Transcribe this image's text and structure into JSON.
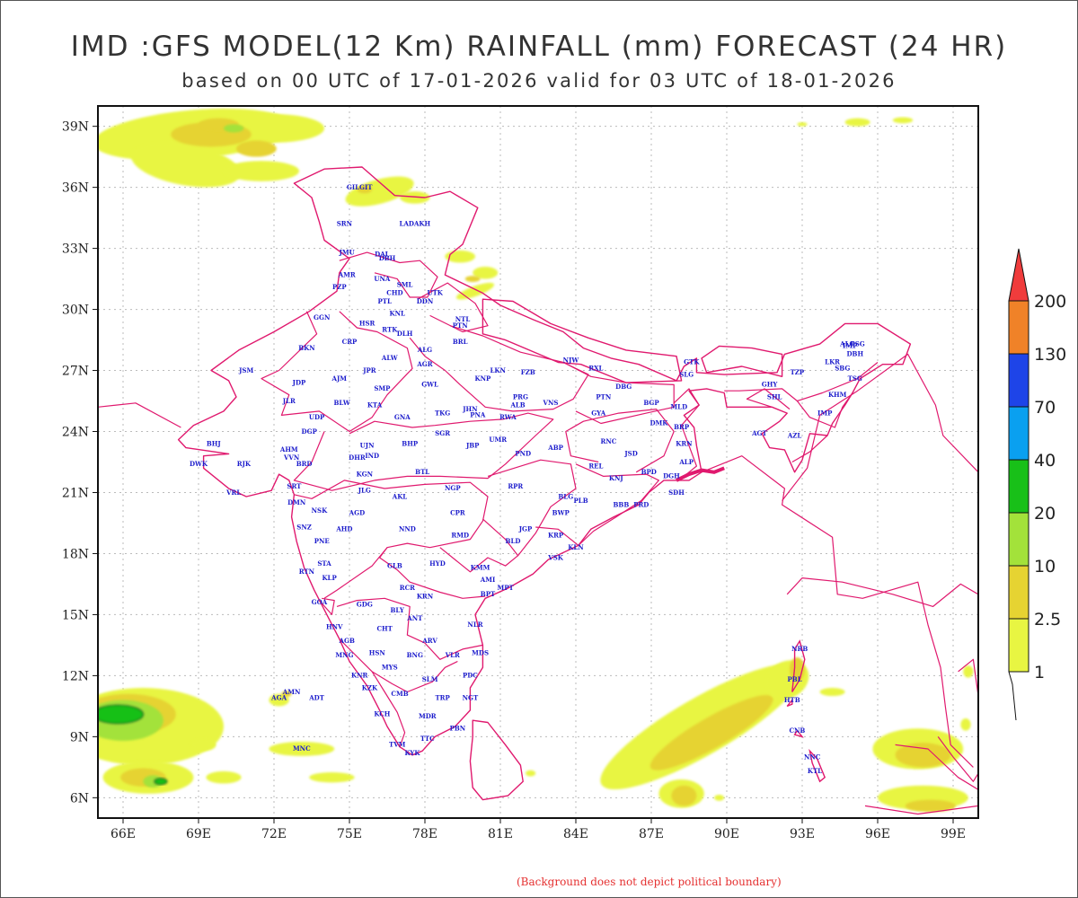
{
  "header": {
    "title": "IMD :GFS MODEL(12 Km) RAINFALL (mm) FORECAST (24 HR)",
    "subtitle": "based on 00 UTC of 17-01-2026 valid for 03 UTC of 18-01-2026"
  },
  "footer": {
    "note": "(Background does not depict political boundary)"
  },
  "map": {
    "lon_range": [
      65,
      100
    ],
    "lat_range": [
      5,
      40
    ],
    "lon_ticks": [
      "66E",
      "69E",
      "72E",
      "75E",
      "78E",
      "81E",
      "84E",
      "87E",
      "90E",
      "93E",
      "96E",
      "99E"
    ],
    "lat_ticks": [
      "39N",
      "36N",
      "33N",
      "30N",
      "27N",
      "24N",
      "21N",
      "18N",
      "15N",
      "12N",
      "9N",
      "6N"
    ],
    "colorbar": {
      "labels": [
        "1",
        "2.5",
        "10",
        "20",
        "40",
        "70",
        "130",
        "200"
      ],
      "colors": [
        "#e8f542",
        "#e6d332",
        "#a3e23a",
        "#18c018",
        "#0aa0f0",
        "#1e44e8",
        "#f08228",
        "#f03c3c"
      ]
    },
    "boundary_color": "#e0196e",
    "stations": [
      {
        "name": "GILGIT",
        "lon": 75.4,
        "lat": 35.9
      },
      {
        "name": "LADAKH",
        "lon": 77.6,
        "lat": 34.1
      },
      {
        "name": "SRN",
        "lon": 74.8,
        "lat": 34.1
      },
      {
        "name": "JMU",
        "lon": 74.9,
        "lat": 32.7
      },
      {
        "name": "DAL",
        "lon": 76.3,
        "lat": 32.6
      },
      {
        "name": "DBH",
        "lon": 76.5,
        "lat": 32.4
      },
      {
        "name": "AMR",
        "lon": 74.9,
        "lat": 31.6
      },
      {
        "name": "UNA",
        "lon": 76.3,
        "lat": 31.4
      },
      {
        "name": "PZP",
        "lon": 74.6,
        "lat": 31.0
      },
      {
        "name": "SML",
        "lon": 77.2,
        "lat": 31.1
      },
      {
        "name": "CHD",
        "lon": 76.8,
        "lat": 30.7
      },
      {
        "name": "UTK",
        "lon": 78.4,
        "lat": 30.7
      },
      {
        "name": "PTL",
        "lon": 76.4,
        "lat": 30.3
      },
      {
        "name": "DDN",
        "lon": 78.0,
        "lat": 30.3
      },
      {
        "name": "KNL",
        "lon": 76.9,
        "lat": 29.7
      },
      {
        "name": "NTL",
        "lon": 79.5,
        "lat": 29.4
      },
      {
        "name": "PTN",
        "lon": 79.4,
        "lat": 29.1
      },
      {
        "name": "GGN",
        "lon": 73.9,
        "lat": 29.5
      },
      {
        "name": "HSR",
        "lon": 75.7,
        "lat": 29.2
      },
      {
        "name": "RTK",
        "lon": 76.6,
        "lat": 28.9
      },
      {
        "name": "DLH",
        "lon": 77.2,
        "lat": 28.7
      },
      {
        "name": "BRL",
        "lon": 79.4,
        "lat": 28.3
      },
      {
        "name": "ALG",
        "lon": 78.0,
        "lat": 27.9
      },
      {
        "name": "BKN",
        "lon": 73.3,
        "lat": 28.0
      },
      {
        "name": "CRP",
        "lon": 75.0,
        "lat": 28.3
      },
      {
        "name": "ALW",
        "lon": 76.6,
        "lat": 27.5
      },
      {
        "name": "AGR",
        "lon": 78.0,
        "lat": 27.2
      },
      {
        "name": "JSM",
        "lon": 70.9,
        "lat": 26.9
      },
      {
        "name": "JPR",
        "lon": 75.8,
        "lat": 26.9
      },
      {
        "name": "LKN",
        "lon": 80.9,
        "lat": 26.9
      },
      {
        "name": "FZB",
        "lon": 82.1,
        "lat": 26.8
      },
      {
        "name": "NJW",
        "lon": 83.8,
        "lat": 27.4
      },
      {
        "name": "RXL",
        "lon": 84.8,
        "lat": 27.0
      },
      {
        "name": "GTK",
        "lon": 88.6,
        "lat": 27.3
      },
      {
        "name": "SLG",
        "lon": 88.4,
        "lat": 26.7
      },
      {
        "name": "AJM",
        "lon": 74.6,
        "lat": 26.5
      },
      {
        "name": "GWL",
        "lon": 78.2,
        "lat": 26.2
      },
      {
        "name": "KNP",
        "lon": 80.3,
        "lat": 26.5
      },
      {
        "name": "JDP",
        "lon": 73.0,
        "lat": 26.3
      },
      {
        "name": "SMP",
        "lon": 76.3,
        "lat": 26.0
      },
      {
        "name": "KTA",
        "lon": 76.0,
        "lat": 25.2
      },
      {
        "name": "PRG",
        "lon": 81.8,
        "lat": 25.6
      },
      {
        "name": "VNS",
        "lon": 83.0,
        "lat": 25.3
      },
      {
        "name": "PTN",
        "lon": 85.1,
        "lat": 25.6
      },
      {
        "name": "DBG",
        "lon": 85.9,
        "lat": 26.1
      },
      {
        "name": "BGP",
        "lon": 87.0,
        "lat": 25.3
      },
      {
        "name": "ALB",
        "lon": 81.7,
        "lat": 25.2
      },
      {
        "name": "JLR",
        "lon": 72.6,
        "lat": 25.4
      },
      {
        "name": "BLW",
        "lon": 74.7,
        "lat": 25.3
      },
      {
        "name": "TKG",
        "lon": 78.7,
        "lat": 24.8
      },
      {
        "name": "JHN",
        "lon": 79.8,
        "lat": 25.0
      },
      {
        "name": "PNA",
        "lon": 80.1,
        "lat": 24.7
      },
      {
        "name": "RWA",
        "lon": 81.3,
        "lat": 24.6
      },
      {
        "name": "GNA",
        "lon": 77.1,
        "lat": 24.6
      },
      {
        "name": "UDP",
        "lon": 73.7,
        "lat": 24.6
      },
      {
        "name": "GYA",
        "lon": 84.9,
        "lat": 24.8
      },
      {
        "name": "MLD",
        "lon": 88.1,
        "lat": 25.1
      },
      {
        "name": "DMK",
        "lon": 87.3,
        "lat": 24.3
      },
      {
        "name": "BRP",
        "lon": 88.2,
        "lat": 24.1
      },
      {
        "name": "SGR",
        "lon": 78.7,
        "lat": 23.8
      },
      {
        "name": "DGP",
        "lon": 73.4,
        "lat": 23.9
      },
      {
        "name": "BHJ",
        "lon": 69.6,
        "lat": 23.3
      },
      {
        "name": "AHM",
        "lon": 72.6,
        "lat": 23.0
      },
      {
        "name": "UJN",
        "lon": 75.7,
        "lat": 23.2
      },
      {
        "name": "BHP",
        "lon": 77.4,
        "lat": 23.3
      },
      {
        "name": "JBP",
        "lon": 79.9,
        "lat": 23.2
      },
      {
        "name": "UMR",
        "lon": 80.9,
        "lat": 23.5
      },
      {
        "name": "ABP",
        "lon": 83.2,
        "lat": 23.1
      },
      {
        "name": "RNC",
        "lon": 85.3,
        "lat": 23.4
      },
      {
        "name": "KRN",
        "lon": 88.3,
        "lat": 23.3
      },
      {
        "name": "VVN",
        "lon": 72.7,
        "lat": 22.6
      },
      {
        "name": "IND",
        "lon": 75.9,
        "lat": 22.7
      },
      {
        "name": "PND",
        "lon": 81.9,
        "lat": 22.8
      },
      {
        "name": "JSD",
        "lon": 86.2,
        "lat": 22.8
      },
      {
        "name": "ALP",
        "lon": 88.4,
        "lat": 22.4
      },
      {
        "name": "DWK",
        "lon": 69.0,
        "lat": 22.3
      },
      {
        "name": "RJK",
        "lon": 70.8,
        "lat": 22.3
      },
      {
        "name": "BRD",
        "lon": 73.2,
        "lat": 22.3
      },
      {
        "name": "DHR",
        "lon": 75.3,
        "lat": 22.6
      },
      {
        "name": "KGN",
        "lon": 75.6,
        "lat": 21.8
      },
      {
        "name": "BTL",
        "lon": 77.9,
        "lat": 21.9
      },
      {
        "name": "REL",
        "lon": 84.8,
        "lat": 22.2
      },
      {
        "name": "KNJ",
        "lon": 85.6,
        "lat": 21.6
      },
      {
        "name": "BPD",
        "lon": 86.9,
        "lat": 21.9
      },
      {
        "name": "DGH",
        "lon": 87.8,
        "lat": 21.7
      },
      {
        "name": "VRL",
        "lon": 70.4,
        "lat": 20.9
      },
      {
        "name": "SRT",
        "lon": 72.8,
        "lat": 21.2
      },
      {
        "name": "JLG",
        "lon": 75.6,
        "lat": 21.0
      },
      {
        "name": "AKL",
        "lon": 77.0,
        "lat": 20.7
      },
      {
        "name": "NGP",
        "lon": 79.1,
        "lat": 21.1
      },
      {
        "name": "RPR",
        "lon": 81.6,
        "lat": 21.2
      },
      {
        "name": "BLG",
        "lon": 83.6,
        "lat": 20.7
      },
      {
        "name": "PLB",
        "lon": 84.2,
        "lat": 20.5
      },
      {
        "name": "BBB",
        "lon": 85.8,
        "lat": 20.3
      },
      {
        "name": "PRD",
        "lon": 86.6,
        "lat": 20.3
      },
      {
        "name": "SDH",
        "lon": 88.0,
        "lat": 20.9
      },
      {
        "name": "DMN",
        "lon": 72.9,
        "lat": 20.4
      },
      {
        "name": "NSK",
        "lon": 73.8,
        "lat": 20.0
      },
      {
        "name": "AGD",
        "lon": 75.3,
        "lat": 19.9
      },
      {
        "name": "CPR",
        "lon": 79.3,
        "lat": 19.9
      },
      {
        "name": "BWP",
        "lon": 83.4,
        "lat": 19.9
      },
      {
        "name": "SNZ",
        "lon": 73.2,
        "lat": 19.2
      },
      {
        "name": "AHD",
        "lon": 74.8,
        "lat": 19.1
      },
      {
        "name": "NND",
        "lon": 77.3,
        "lat": 19.1
      },
      {
        "name": "JGP",
        "lon": 82.0,
        "lat": 19.1
      },
      {
        "name": "KRP",
        "lon": 83.2,
        "lat": 18.8
      },
      {
        "name": "RMD",
        "lon": 79.4,
        "lat": 18.8
      },
      {
        "name": "BLD",
        "lon": 81.5,
        "lat": 18.5
      },
      {
        "name": "PNE",
        "lon": 73.9,
        "lat": 18.5
      },
      {
        "name": "KLN",
        "lon": 84.0,
        "lat": 18.2
      },
      {
        "name": "VSK",
        "lon": 83.2,
        "lat": 17.7
      },
      {
        "name": "STA",
        "lon": 74.0,
        "lat": 17.4
      },
      {
        "name": "GLB",
        "lon": 76.8,
        "lat": 17.3
      },
      {
        "name": "HYD",
        "lon": 78.5,
        "lat": 17.4
      },
      {
        "name": "RTN",
        "lon": 73.3,
        "lat": 17.0
      },
      {
        "name": "KMM",
        "lon": 80.2,
        "lat": 17.2
      },
      {
        "name": "KLP",
        "lon": 74.2,
        "lat": 16.7
      },
      {
        "name": "AMI",
        "lon": 80.5,
        "lat": 16.6
      },
      {
        "name": "MPT",
        "lon": 81.2,
        "lat": 16.2
      },
      {
        "name": "BPT",
        "lon": 80.5,
        "lat": 15.9
      },
      {
        "name": "RCR",
        "lon": 77.3,
        "lat": 16.2
      },
      {
        "name": "KRN",
        "lon": 78.0,
        "lat": 15.8
      },
      {
        "name": "GOA",
        "lon": 73.8,
        "lat": 15.5
      },
      {
        "name": "GDG",
        "lon": 75.6,
        "lat": 15.4
      },
      {
        "name": "BLY",
        "lon": 76.9,
        "lat": 15.1
      },
      {
        "name": "ANT",
        "lon": 77.6,
        "lat": 14.7
      },
      {
        "name": "NLR",
        "lon": 80.0,
        "lat": 14.4
      },
      {
        "name": "HNV",
        "lon": 74.4,
        "lat": 14.3
      },
      {
        "name": "CHT",
        "lon": 76.4,
        "lat": 14.2
      },
      {
        "name": "ARV",
        "lon": 78.2,
        "lat": 13.6
      },
      {
        "name": "AGB",
        "lon": 74.9,
        "lat": 13.6
      },
      {
        "name": "VLR",
        "lon": 79.1,
        "lat": 12.9
      },
      {
        "name": "MDS",
        "lon": 80.2,
        "lat": 13.0
      },
      {
        "name": "MNG",
        "lon": 74.8,
        "lat": 12.9
      },
      {
        "name": "HSN",
        "lon": 76.1,
        "lat": 13.0
      },
      {
        "name": "BNG",
        "lon": 77.6,
        "lat": 12.9
      },
      {
        "name": "MYS",
        "lon": 76.6,
        "lat": 12.3
      },
      {
        "name": "KNR",
        "lon": 75.4,
        "lat": 11.9
      },
      {
        "name": "SLM",
        "lon": 78.2,
        "lat": 11.7
      },
      {
        "name": "PDC",
        "lon": 79.8,
        "lat": 11.9
      },
      {
        "name": "KZK",
        "lon": 75.8,
        "lat": 11.3
      },
      {
        "name": "CMB",
        "lon": 77.0,
        "lat": 11.0
      },
      {
        "name": "TRP",
        "lon": 78.7,
        "lat": 10.8
      },
      {
        "name": "NGT",
        "lon": 79.8,
        "lat": 10.8
      },
      {
        "name": "KCH",
        "lon": 76.3,
        "lat": 10.0
      },
      {
        "name": "MDR",
        "lon": 78.1,
        "lat": 9.9
      },
      {
        "name": "PBN",
        "lon": 79.3,
        "lat": 9.3
      },
      {
        "name": "TVM",
        "lon": 76.9,
        "lat": 8.5
      },
      {
        "name": "TTC",
        "lon": 78.1,
        "lat": 8.8
      },
      {
        "name": "KYK",
        "lon": 77.5,
        "lat": 8.1
      },
      {
        "name": "AMN",
        "lon": 72.7,
        "lat": 11.1
      },
      {
        "name": "AGA",
        "lon": 72.2,
        "lat": 10.8
      },
      {
        "name": "ADT",
        "lon": 73.7,
        "lat": 10.8
      },
      {
        "name": "MNC",
        "lon": 73.1,
        "lat": 8.3
      },
      {
        "name": "NRB",
        "lon": 92.9,
        "lat": 13.2
      },
      {
        "name": "PBL",
        "lon": 92.7,
        "lat": 11.7
      },
      {
        "name": "HTB",
        "lon": 92.6,
        "lat": 10.7
      },
      {
        "name": "CNB",
        "lon": 92.8,
        "lat": 9.2
      },
      {
        "name": "NNC",
        "lon": 93.4,
        "lat": 7.9
      },
      {
        "name": "KTL",
        "lon": 93.5,
        "lat": 7.2
      },
      {
        "name": "ALO",
        "lon": 94.8,
        "lat": 28.2
      },
      {
        "name": "PSG",
        "lon": 95.2,
        "lat": 28.2
      },
      {
        "name": "IMP",
        "lon": 94.9,
        "lat": 28.1
      },
      {
        "name": "DBH",
        "lon": 95.1,
        "lat": 27.7
      },
      {
        "name": "LKR",
        "lon": 94.2,
        "lat": 27.3
      },
      {
        "name": "SBG",
        "lon": 94.6,
        "lat": 27.0
      },
      {
        "name": "TZP",
        "lon": 92.8,
        "lat": 26.8
      },
      {
        "name": "TSG",
        "lon": 95.1,
        "lat": 26.5
      },
      {
        "name": "GHY",
        "lon": 91.7,
        "lat": 26.2
      },
      {
        "name": "SHL",
        "lon": 91.9,
        "lat": 25.6
      },
      {
        "name": "KHM",
        "lon": 94.4,
        "lat": 25.7
      },
      {
        "name": "IMP",
        "lon": 93.9,
        "lat": 24.8
      },
      {
        "name": "AGT",
        "lon": 91.3,
        "lat": 23.8
      },
      {
        "name": "AZL",
        "lon": 92.7,
        "lat": 23.7
      }
    ]
  }
}
